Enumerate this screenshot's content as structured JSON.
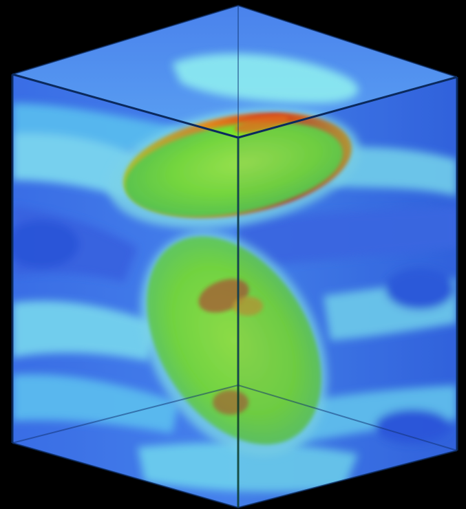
{
  "image": {
    "subject": "3d-volume-render",
    "colors": {
      "background": "#000000",
      "box_face": "#3f76f0",
      "box_light": "#5ab8f4",
      "band_cyan": "#7fe6f0",
      "band_deep": "#3260e0",
      "iso_green": "#7ee52a",
      "iso_yellow": "#c9e21c",
      "iso_red": "#d23a1c",
      "edge": "#0b2a5e"
    }
  }
}
